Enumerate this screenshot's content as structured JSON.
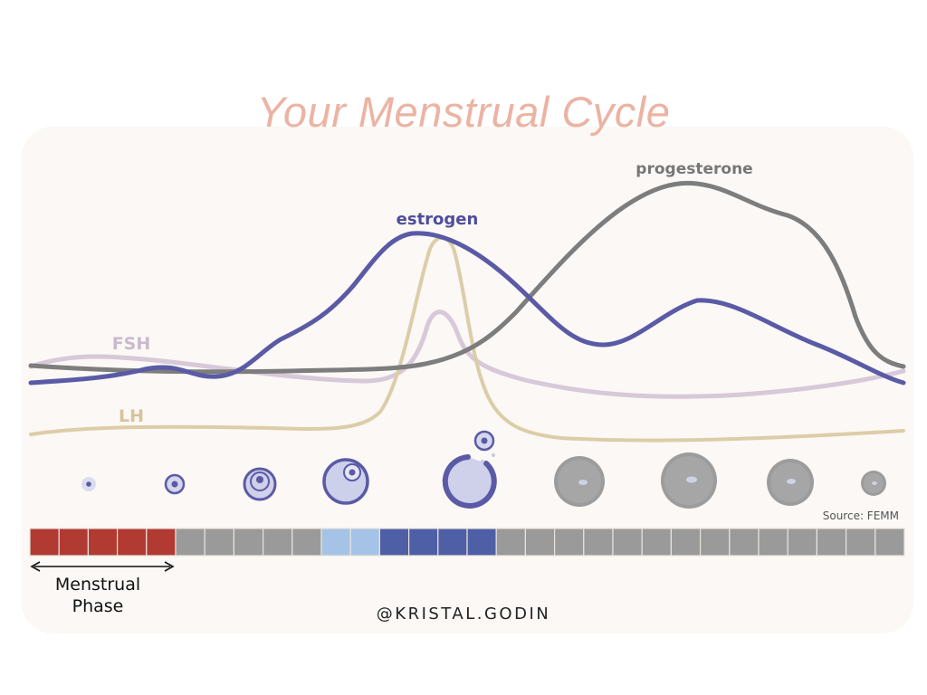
{
  "title": "Your Menstrual Cycle",
  "labels": {
    "estrogen": "estrogen",
    "progesterone": "progesterone",
    "fsh": "FSH",
    "lh": "LH"
  },
  "source": "Source: FEMM",
  "phase_label": "Menstrual Phase",
  "handle": "@KRISTAL.GODIN",
  "colors": {
    "title": "#ecb3a3",
    "estrogen": "#5a5aa6",
    "progesterone": "#7d7d7d",
    "fsh": "#d7c9d9",
    "lh": "#dccda8",
    "menstrual": "#b13a33",
    "neutral_day": "#9a9a9a",
    "light_blue_day": "#a5c3e6",
    "blue_day": "#4f5fa5"
  },
  "day_bar": {
    "day_count": 30,
    "day_types": [
      "menstrual",
      "menstrual",
      "menstrual",
      "menstrual",
      "menstrual",
      "neutral",
      "neutral",
      "neutral",
      "neutral",
      "neutral",
      "light_blue",
      "light_blue",
      "blue",
      "blue",
      "blue",
      "blue",
      "neutral",
      "neutral",
      "neutral",
      "neutral",
      "neutral",
      "neutral",
      "neutral",
      "neutral",
      "neutral",
      "neutral",
      "neutral",
      "neutral",
      "neutral",
      "neutral"
    ]
  },
  "follicle_stages": [
    "primordial",
    "primary",
    "secondary",
    "tertiary",
    "ovulation",
    "corpus-luteum",
    "corpus-luteum",
    "corpus-luteum",
    "corpus-albicans"
  ]
}
